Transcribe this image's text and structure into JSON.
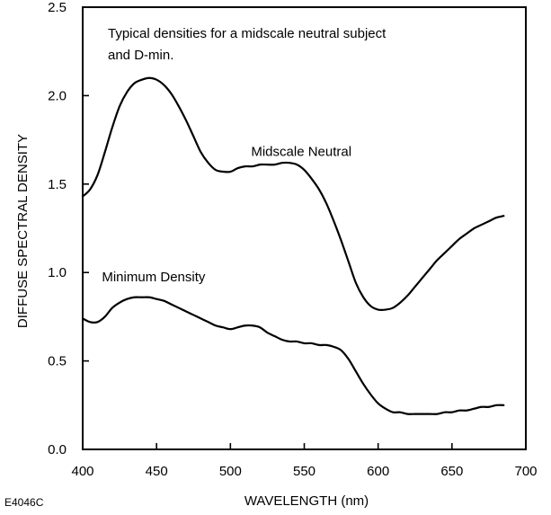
{
  "chart_data": {
    "type": "line",
    "title": "",
    "xlabel": "WAVELENGTH (nm)",
    "ylabel": "DIFFUSE SPECTRAL DENSITY",
    "xlim": [
      400,
      700
    ],
    "ylim": [
      0.0,
      2.5
    ],
    "x_ticks": [
      "400",
      "450",
      "500",
      "550",
      "600",
      "650",
      "700"
    ],
    "y_ticks": [
      "0.0",
      "0.5",
      "1.0",
      "1.5",
      "2.0",
      "2.5"
    ],
    "grid": false,
    "annotations": {
      "note_line1": "Typical densities for a midscale neutral subject",
      "note_line2": "and D-min."
    },
    "series": [
      {
        "name": "Midscale Neutral",
        "x": [
          400,
          405,
          410,
          415,
          420,
          425,
          430,
          435,
          440,
          445,
          450,
          455,
          460,
          465,
          470,
          475,
          480,
          485,
          490,
          495,
          500,
          505,
          510,
          515,
          520,
          525,
          530,
          535,
          540,
          545,
          550,
          555,
          560,
          565,
          570,
          575,
          580,
          585,
          590,
          595,
          600,
          605,
          610,
          615,
          620,
          625,
          630,
          635,
          640,
          645,
          650,
          655,
          660,
          665,
          670,
          675,
          680,
          685
        ],
        "values": [
          1.43,
          1.47,
          1.55,
          1.68,
          1.82,
          1.94,
          2.02,
          2.07,
          2.09,
          2.1,
          2.09,
          2.06,
          2.01,
          1.94,
          1.86,
          1.77,
          1.68,
          1.62,
          1.58,
          1.57,
          1.57,
          1.59,
          1.6,
          1.6,
          1.61,
          1.61,
          1.61,
          1.62,
          1.62,
          1.61,
          1.58,
          1.53,
          1.47,
          1.39,
          1.29,
          1.18,
          1.06,
          0.94,
          0.86,
          0.81,
          0.79,
          0.79,
          0.8,
          0.83,
          0.87,
          0.92,
          0.97,
          1.02,
          1.07,
          1.11,
          1.15,
          1.19,
          1.22,
          1.25,
          1.27,
          1.29,
          1.31,
          1.32
        ]
      },
      {
        "name": "Minimum Density",
        "x": [
          400,
          405,
          410,
          415,
          420,
          425,
          430,
          435,
          440,
          445,
          450,
          455,
          460,
          465,
          470,
          475,
          480,
          485,
          490,
          495,
          500,
          505,
          510,
          515,
          520,
          525,
          530,
          535,
          540,
          545,
          550,
          555,
          560,
          565,
          570,
          575,
          580,
          585,
          590,
          595,
          600,
          605,
          610,
          615,
          620,
          625,
          630,
          635,
          640,
          645,
          650,
          655,
          660,
          665,
          670,
          675,
          680,
          685
        ],
        "values": [
          0.74,
          0.72,
          0.72,
          0.75,
          0.8,
          0.83,
          0.85,
          0.86,
          0.86,
          0.86,
          0.85,
          0.84,
          0.82,
          0.8,
          0.78,
          0.76,
          0.74,
          0.72,
          0.7,
          0.69,
          0.68,
          0.69,
          0.7,
          0.7,
          0.69,
          0.66,
          0.64,
          0.62,
          0.61,
          0.61,
          0.6,
          0.6,
          0.59,
          0.59,
          0.58,
          0.56,
          0.51,
          0.44,
          0.37,
          0.31,
          0.26,
          0.23,
          0.21,
          0.21,
          0.2,
          0.2,
          0.2,
          0.2,
          0.2,
          0.21,
          0.21,
          0.22,
          0.22,
          0.23,
          0.24,
          0.24,
          0.25,
          0.25
        ]
      }
    ],
    "series_labels": [
      {
        "text": "Midscale Neutral",
        "x": 548,
        "y": 1.66
      },
      {
        "text": "Minimum Density",
        "x": 448,
        "y": 0.95
      }
    ],
    "figure_id": "E4046C"
  }
}
